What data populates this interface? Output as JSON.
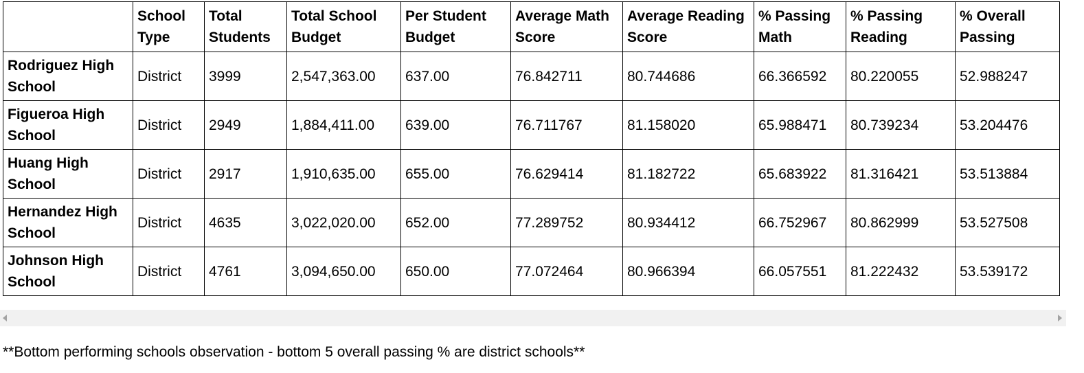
{
  "table": {
    "headers": [
      "",
      "School Type",
      "Total Students",
      "Total School Budget",
      "Per Student Budget",
      "Average Math Score",
      "Average Reading Score",
      "% Passing Math",
      "% Passing Reading",
      "% Overall Passing"
    ],
    "header_lines": [
      [
        ""
      ],
      [
        "School",
        "Type"
      ],
      [
        "Total",
        "Students"
      ],
      [
        "Total School",
        "Budget"
      ],
      [
        "Per Student",
        "Budget"
      ],
      [
        "Average Math",
        "Score"
      ],
      [
        "Average Reading",
        "Score"
      ],
      [
        "% Passing",
        "Math"
      ],
      [
        "% Passing",
        "Reading"
      ],
      [
        "% Overall",
        "Passing"
      ]
    ],
    "rows": [
      {
        "name_lines": [
          "Rodriguez High",
          "School"
        ],
        "cells": [
          "District",
          "3999",
          "2,547,363.00",
          "637.00",
          "76.842711",
          "80.744686",
          "66.366592",
          "80.220055",
          "52.988247"
        ]
      },
      {
        "name_lines": [
          "Figueroa High",
          "School"
        ],
        "cells": [
          "District",
          "2949",
          "1,884,411.00",
          "639.00",
          "76.711767",
          "81.158020",
          "65.988471",
          "80.739234",
          "53.204476"
        ]
      },
      {
        "name_lines": [
          "Huang High",
          "School"
        ],
        "cells": [
          "District",
          "2917",
          "1,910,635.00",
          "655.00",
          "76.629414",
          "81.182722",
          "65.683922",
          "81.316421",
          "53.513884"
        ]
      },
      {
        "name_lines": [
          "Hernandez High",
          "School"
        ],
        "cells": [
          "District",
          "4635",
          "3,022,020.00",
          "652.00",
          "77.289752",
          "80.934412",
          "66.752967",
          "80.862999",
          "53.527508"
        ]
      },
      {
        "name_lines": [
          "Johnson High",
          "School"
        ],
        "cells": [
          "District",
          "4761",
          "3,094,650.00",
          "650.00",
          "77.072464",
          "80.966394",
          "66.057551",
          "81.222432",
          "53.539172"
        ]
      }
    ]
  },
  "scrollbar": {
    "left_icon": "scroll-left-arrow-icon",
    "right_icon": "scroll-right-arrow-icon"
  },
  "observation": "**Bottom performing schools observation - bottom 5 overall passing % are district schools**"
}
